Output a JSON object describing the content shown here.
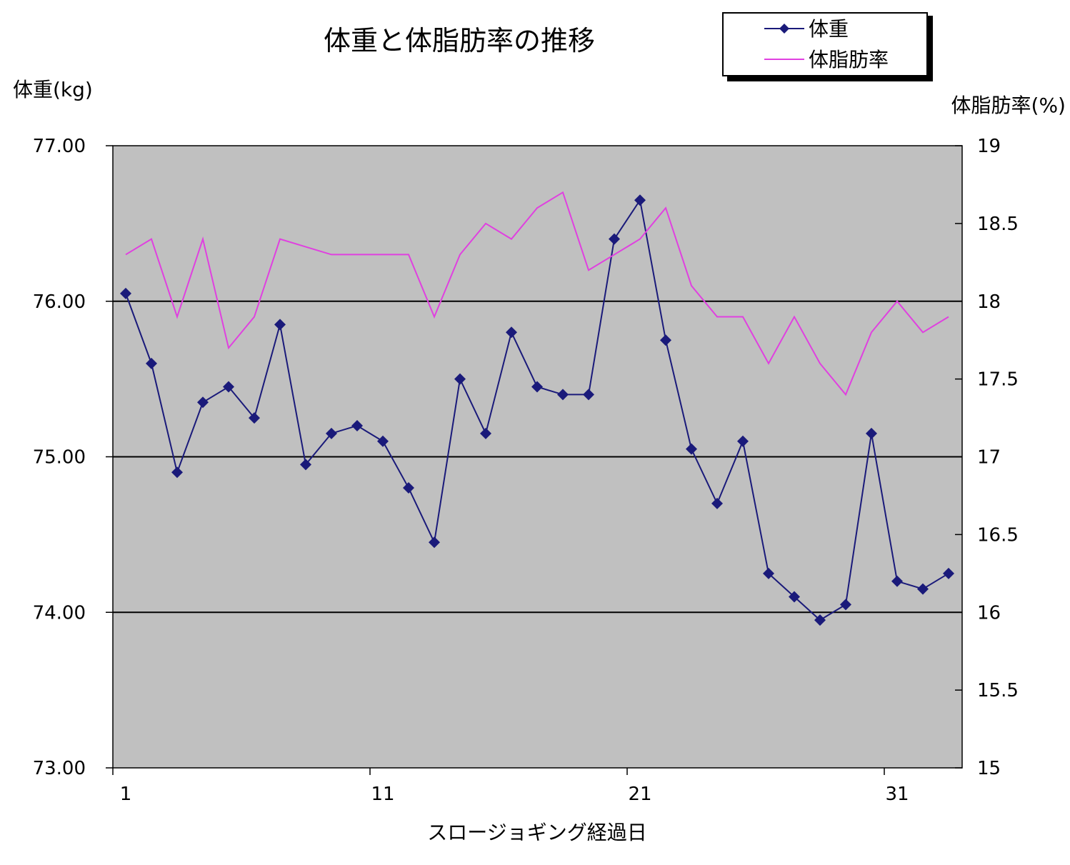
{
  "chart_data": {
    "type": "line",
    "title": "体重と体脂肪率の推移",
    "xlabel": "スロージョギング経過日",
    "ylabel_left": "体重(kg)",
    "ylabel_right": "体脂肪率(%)",
    "y_left_lim": [
      73,
      77
    ],
    "y_right_lim": [
      15,
      19
    ],
    "x_range": [
      1,
      33
    ],
    "x_ticks": [
      1,
      11,
      21,
      31
    ],
    "y_left_ticks": [
      "73.00",
      "74.00",
      "75.00",
      "76.00",
      "77.00"
    ],
    "y_right_ticks": [
      "15",
      "15.5",
      "16",
      "16.5",
      "17",
      "17.5",
      "18",
      "18.5",
      "19"
    ],
    "grid": "major horizontal lines at 74, 75, 76",
    "legend_position": "top-right",
    "series": [
      {
        "name": "体重",
        "axis": "left",
        "color": "#1a1a7a",
        "marker": "diamond",
        "x": [
          1,
          2,
          3,
          4,
          5,
          6,
          7,
          8,
          9,
          10,
          11,
          12,
          13,
          14,
          15,
          16,
          17,
          18,
          19,
          20,
          21,
          22,
          23,
          24,
          25,
          26,
          27,
          28,
          29,
          30,
          31,
          32,
          33
        ],
        "values": [
          76.05,
          75.6,
          74.9,
          75.35,
          75.45,
          75.25,
          75.85,
          74.95,
          75.15,
          75.2,
          75.1,
          74.8,
          74.45,
          75.5,
          75.15,
          75.8,
          75.45,
          75.4,
          75.4,
          76.4,
          76.65,
          75.75,
          75.05,
          74.7,
          75.1,
          74.25,
          74.1,
          73.95,
          74.05,
          75.15,
          74.2,
          74.15,
          74.25
        ]
      },
      {
        "name": "体脂肪率",
        "axis": "right",
        "color": "#e040e0",
        "marker": "none",
        "x": [
          1,
          2,
          3,
          4,
          5,
          6,
          7,
          8,
          9,
          10,
          11,
          12,
          13,
          14,
          15,
          16,
          17,
          18,
          19,
          20,
          21,
          22,
          23,
          24,
          25,
          26,
          27,
          28,
          29,
          30,
          31,
          32,
          33
        ],
        "values": [
          18.3,
          18.4,
          17.9,
          18.4,
          17.7,
          17.9,
          18.4,
          18.35,
          18.3,
          18.3,
          18.3,
          18.3,
          17.9,
          18.3,
          18.5,
          18.4,
          18.6,
          18.7,
          18.2,
          18.3,
          18.4,
          18.6,
          18.1,
          17.9,
          17.9,
          17.6,
          17.9,
          17.6,
          17.4,
          17.8,
          18.0,
          17.8,
          17.9
        ]
      }
    ]
  },
  "colors": {
    "plot_bg": "#c0c0c0",
    "weight": "#1a1a7a",
    "body_fat": "#e040e0"
  }
}
